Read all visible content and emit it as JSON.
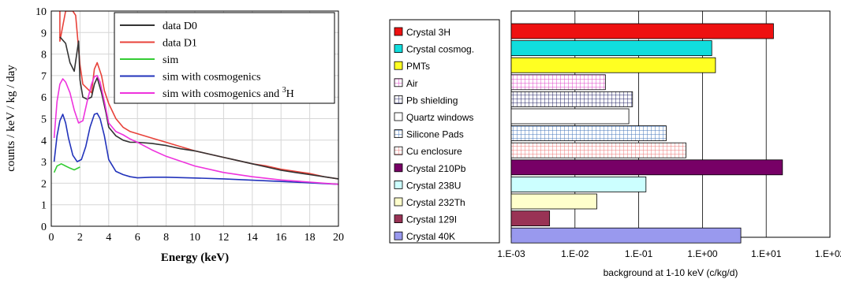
{
  "chart_data": [
    {
      "type": "line",
      "xlabel": "Energy (keV)",
      "ylabel": "counts / keV / kg / day",
      "xlim": [
        0,
        20
      ],
      "ylim": [
        0,
        10
      ],
      "x_ticks": [
        0,
        2,
        4,
        6,
        8,
        10,
        12,
        14,
        16,
        18,
        20
      ],
      "y_ticks": [
        0,
        1,
        2,
        3,
        4,
        5,
        6,
        7,
        8,
        9,
        10
      ],
      "grid": true,
      "legend_position": "top-right",
      "legend": [
        {
          "prefix": "data D0",
          "sup": "",
          "color": "#333333"
        },
        {
          "prefix": "data D1",
          "sup": "",
          "color": "#e8423a"
        },
        {
          "prefix": "sim",
          "sup": "",
          "color": "#33cc33"
        },
        {
          "prefix": "sim with cosmogenics",
          "sup": "",
          "color": "#2233bb"
        },
        {
          "prefix": "sim with cosmogenics and ",
          "sup": "3",
          "suffix": "H",
          "color": "#ee33dd"
        }
      ],
      "series": [
        {
          "name": "data D1",
          "color": "#e8423a",
          "x": [
            0.6,
            0.6,
            1.0,
            1.2,
            1.5,
            1.7,
            2.0,
            2.2,
            2.5,
            2.8,
            3.0,
            3.2,
            3.5,
            3.7,
            4.0,
            4.5,
            5.0,
            5.5,
            6.0,
            7.0,
            8.0,
            9.0,
            10.0,
            11.0,
            12.0,
            13.0,
            14.0,
            15.0,
            16.0,
            17.0,
            18.0,
            19.0,
            20.0
          ],
          "y": [
            10,
            8.6,
            10,
            10,
            10,
            9.8,
            7.5,
            6.6,
            6.4,
            6.2,
            7.3,
            7.6,
            7.0,
            6.3,
            5.7,
            5.0,
            4.6,
            4.4,
            4.3,
            4.1,
            3.9,
            3.7,
            3.5,
            3.35,
            3.2,
            3.05,
            2.9,
            2.8,
            2.65,
            2.55,
            2.45,
            2.3,
            2.2
          ]
        },
        {
          "name": "data D0",
          "color": "#333333",
          "x": [
            0.6,
            1.0,
            1.3,
            1.6,
            1.9,
            2.0,
            2.2,
            2.5,
            2.8,
            3.0,
            3.2,
            3.5,
            3.8,
            4.0,
            4.5,
            5.0,
            5.5,
            6.0,
            7.0,
            8.0,
            9.0,
            10.0,
            11.0,
            12.0,
            13.0,
            14.0,
            15.0,
            16.0,
            17.0,
            18.0,
            19.0,
            20.0
          ],
          "y": [
            8.8,
            8.5,
            7.6,
            7.2,
            8.6,
            6.8,
            6.0,
            5.9,
            6.0,
            6.6,
            6.9,
            6.2,
            5.3,
            4.6,
            4.2,
            4.0,
            3.9,
            3.9,
            3.85,
            3.75,
            3.6,
            3.5,
            3.35,
            3.2,
            3.05,
            2.9,
            2.75,
            2.6,
            2.5,
            2.4,
            2.3,
            2.2
          ]
        },
        {
          "name": "sim",
          "color": "#33cc33",
          "x": [
            0.2,
            0.4,
            0.7,
            1.0,
            1.3,
            1.6,
            2.0
          ],
          "y": [
            2.5,
            2.8,
            2.9,
            2.8,
            2.7,
            2.62,
            2.75
          ]
        },
        {
          "name": "sim with cosmogenics",
          "color": "#2233bb",
          "x": [
            0.2,
            0.4,
            0.6,
            0.8,
            1.0,
            1.2,
            1.5,
            1.8,
            2.1,
            2.4,
            2.7,
            3.0,
            3.2,
            3.4,
            3.7,
            4.0,
            4.5,
            5.0,
            5.5,
            6.0,
            7.0,
            8.0,
            10.0,
            12.0,
            14.0,
            16.0,
            18.0,
            20.0
          ],
          "y": [
            3.0,
            4.2,
            4.9,
            5.2,
            4.8,
            4.1,
            3.3,
            3.0,
            3.1,
            3.7,
            4.6,
            5.2,
            5.25,
            5.0,
            4.2,
            3.1,
            2.55,
            2.4,
            2.3,
            2.25,
            2.28,
            2.28,
            2.24,
            2.2,
            2.14,
            2.08,
            2.02,
            1.95
          ]
        },
        {
          "name": "sim with cosmogenics and 3H",
          "color": "#ee33dd",
          "x": [
            0.2,
            0.4,
            0.6,
            0.8,
            1.0,
            1.3,
            1.6,
            1.9,
            2.2,
            2.5,
            2.8,
            3.0,
            3.2,
            3.4,
            3.7,
            4.0,
            4.5,
            5.0,
            5.5,
            6.0,
            7.0,
            8.0,
            10.0,
            12.0,
            14.0,
            16.0,
            18.0,
            20.0
          ],
          "y": [
            4.1,
            5.8,
            6.6,
            6.85,
            6.7,
            6.2,
            5.4,
            4.8,
            4.9,
            5.8,
            6.6,
            6.95,
            7.0,
            6.7,
            5.8,
            4.8,
            4.4,
            4.25,
            4.05,
            3.9,
            3.55,
            3.25,
            2.8,
            2.5,
            2.3,
            2.15,
            2.05,
            1.95
          ]
        }
      ]
    },
    {
      "type": "bar",
      "orientation": "horizontal",
      "xscale": "log",
      "xlabel": "background at 1-10 keV (c/kg/d)",
      "xlim": [
        0.001,
        100
      ],
      "x_tick_labels": [
        "1.E-03",
        "1.E-02",
        "1.E-01",
        "1.E+00",
        "1.E+01",
        "1.E+02"
      ],
      "grid": true,
      "legend_position": "left",
      "categories": [
        "Crystal 3H",
        "Crystal cosmog.",
        "PMTs",
        "Air",
        "Pb shielding",
        "Quartz windows",
        "Silicone Pads",
        "Cu enclosure",
        "Crystal 210Pb",
        "Crystal 238U",
        "Crystal 232Th",
        "Crystal 129I",
        "Crystal 40K"
      ],
      "values": [
        13,
        1.4,
        1.6,
        0.03,
        0.08,
        0.07,
        0.27,
        0.55,
        18,
        0.13,
        0.022,
        0.004,
        4.0
      ],
      "colors": [
        "#ee1111",
        "#11dddd",
        "#ffff22",
        "#ff99ee",
        "#8888cc",
        "#ffffff",
        "#88aadd",
        "#ffbbbb",
        "#770066",
        "#ccffff",
        "#ffffcc",
        "#993355",
        "#9999ee"
      ],
      "patterns": [
        "solid",
        "solid",
        "solid",
        "grid-pink",
        "grid-navy",
        "none",
        "grid-blue",
        "grid-salmon",
        "solid",
        "solid",
        "solid",
        "solid",
        "solid"
      ]
    }
  ]
}
